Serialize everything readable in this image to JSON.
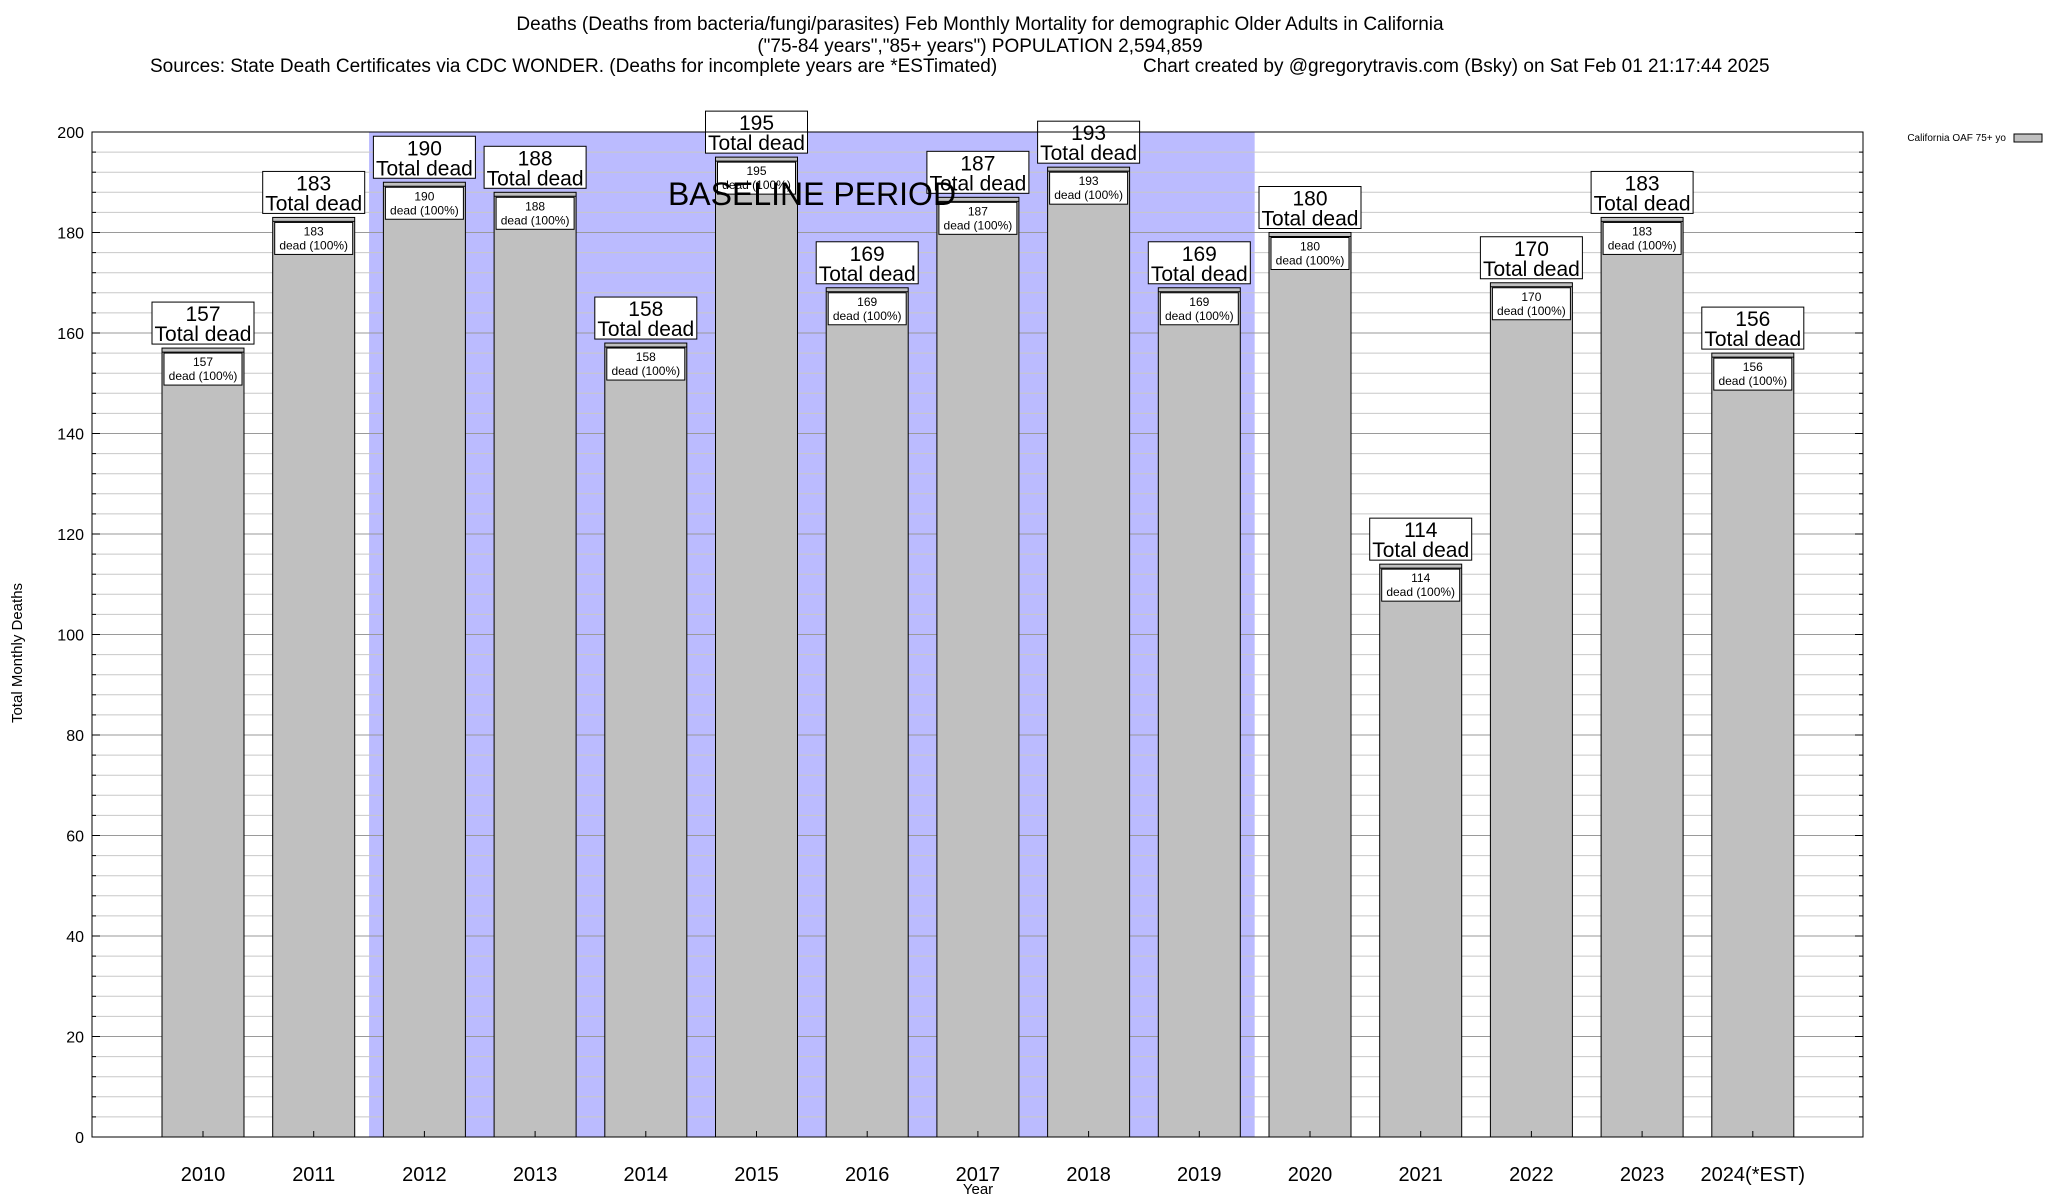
{
  "chart_data": {
    "type": "bar",
    "title_lines": [
      "Deaths (Deaths from bacteria/fungi/parasites) Feb Monthly Mortality for demographic Older Adults in California",
      "(\"75-84 years\",\"85+ years\") POPULATION 2,594,859"
    ],
    "sources_text": "Sources: State Death Certificates via CDC WONDER. (Deaths for incomplete years are *ESTimated)",
    "credit_text": "Chart created by @gregorytravis.com (Bsky) on Sat Feb 01 21:17:44 2025",
    "xlabel": "Year",
    "ylabel": "Total Monthly Deaths",
    "ylim": [
      0,
      200
    ],
    "y_major_ticks": [
      0,
      20,
      40,
      60,
      80,
      100,
      120,
      140,
      160,
      180,
      200
    ],
    "y_minor_step": 4,
    "grid": true,
    "legend": {
      "placement": "top-right",
      "entries": [
        {
          "label": "California OAF 75+ yo",
          "color": "#c0c0c0"
        }
      ]
    },
    "annotation": {
      "text": "BASELINE PERIOD",
      "from_category": "2012",
      "to_category": "2019",
      "color": "#bbbbff"
    },
    "categories": [
      "2010",
      "2011",
      "2012",
      "2013",
      "2014",
      "2015",
      "2016",
      "2017",
      "2018",
      "2019",
      "2020",
      "2021",
      "2022",
      "2023",
      "2024(*EST)"
    ],
    "series": [
      {
        "name": "California OAF 75+ yo",
        "color": "#c0c0c0",
        "values": [
          157,
          183,
          190,
          188,
          158,
          195,
          169,
          187,
          193,
          169,
          180,
          114,
          170,
          183,
          156
        ]
      }
    ],
    "total_label_suffix": "Total dead",
    "inner_label_suffix": "dead (100%)"
  }
}
